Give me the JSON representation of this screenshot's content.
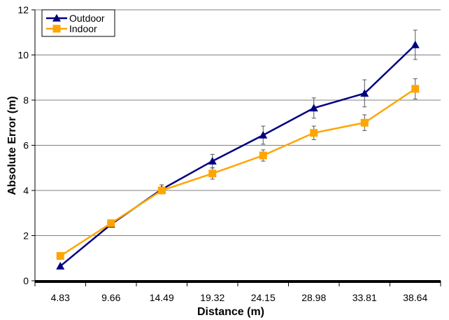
{
  "chart_data": {
    "type": "line",
    "title": "",
    "xlabel": "Distance (m)",
    "ylabel": "Absolute Error (m)",
    "categories": [
      "4.83",
      "9.66",
      "14.49",
      "19.32",
      "24.15",
      "28.98",
      "33.81",
      "38.64"
    ],
    "ylim": [
      0,
      12
    ],
    "yticks": [
      "0",
      "2",
      "4",
      "6",
      "8",
      "10",
      "12"
    ],
    "grid": "horizontal",
    "legend_position": "top-left",
    "series": [
      {
        "name": "Outdoor",
        "color": "#000080",
        "marker": "triangle",
        "values": [
          0.65,
          2.5,
          4.05,
          5.3,
          6.45,
          7.65,
          8.3,
          10.45
        ],
        "errors": [
          0,
          0,
          0.2,
          0.3,
          0.4,
          0.45,
          0.6,
          0.65
        ]
      },
      {
        "name": "Indoor",
        "color": "#FFA500",
        "marker": "square",
        "values": [
          1.1,
          2.55,
          4.0,
          4.75,
          5.55,
          6.55,
          7.0,
          8.5
        ],
        "errors": [
          0,
          0,
          0.15,
          0.25,
          0.25,
          0.3,
          0.35,
          0.45
        ]
      }
    ]
  }
}
